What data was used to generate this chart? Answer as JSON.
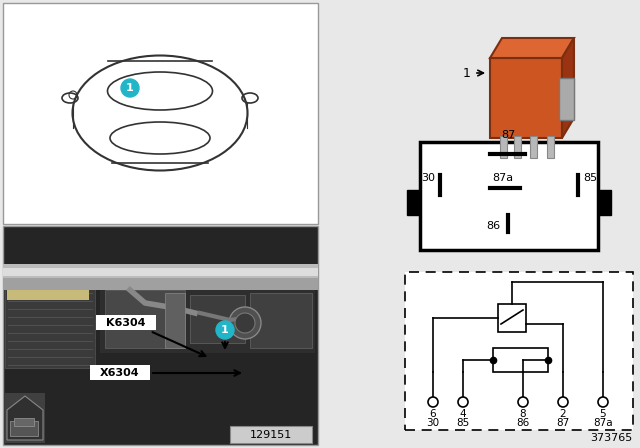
{
  "bg_color": "#e8e8e8",
  "relay_color": "#cc5522",
  "relay_color_top": "#dd6633",
  "relay_color_right": "#993311",
  "callout_color": "#22b5c8",
  "car_panel_bg": "#ffffff",
  "car_panel_border": "#aaaaaa",
  "photo_bg": "#2a2a2a",
  "photo_border": "#aaaaaa",
  "diagram_number": "373765",
  "part_number": "129151",
  "pin_labels_box": [
    "87",
    "30",
    "87a",
    "85",
    "86"
  ],
  "pin_labels_schematic_top": [
    "6",
    "4",
    "8",
    "2",
    "5"
  ],
  "pin_labels_schematic_bot": [
    "30",
    "85",
    "86",
    "87",
    "87a"
  ],
  "engine_labels": [
    "K6304",
    "X6304"
  ],
  "callout_label": "1"
}
